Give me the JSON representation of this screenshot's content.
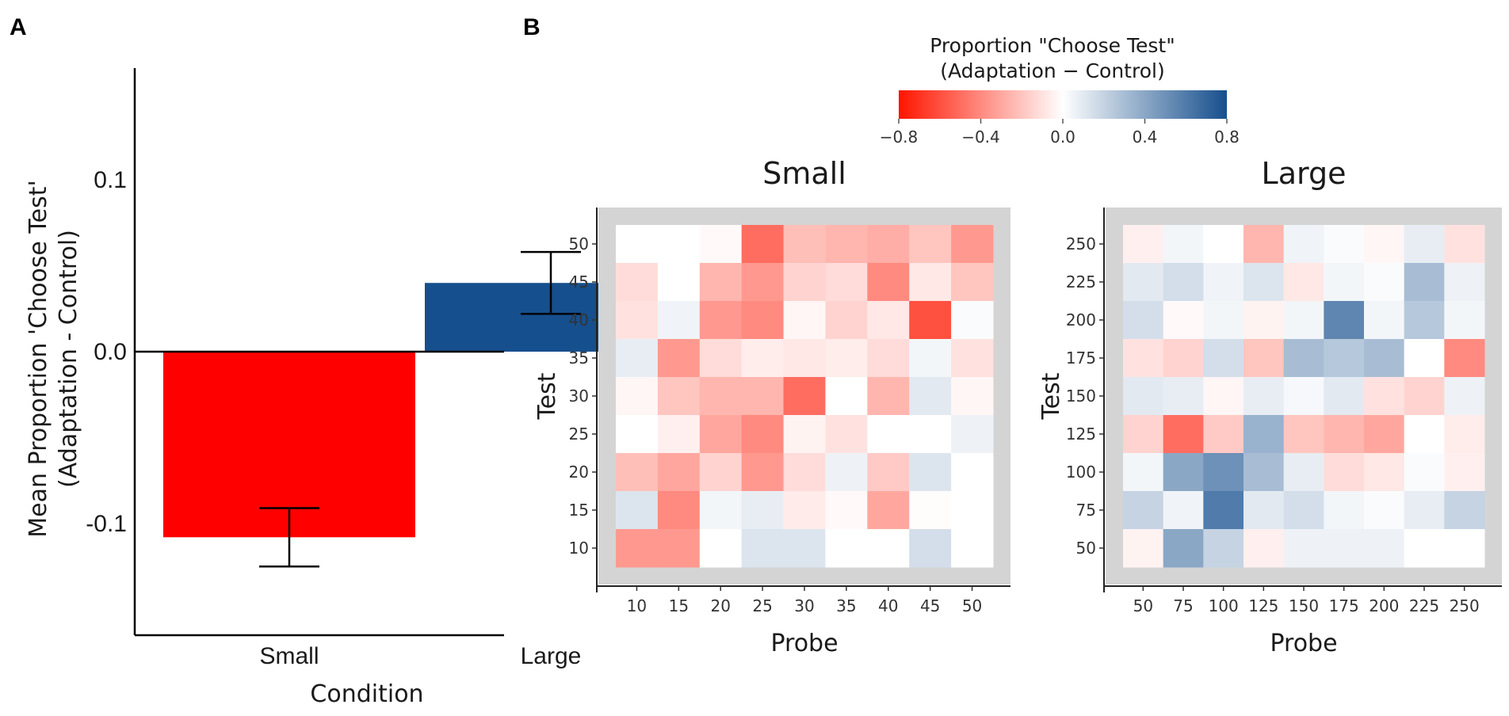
{
  "chart_data": [
    {
      "panel": "A",
      "type": "bar",
      "categories": [
        "Small",
        "Large"
      ],
      "values": [
        -0.108,
        0.04
      ],
      "error_bars": [
        {
          "category": "Small",
          "low": -0.125,
          "high": -0.091
        },
        {
          "category": "Large",
          "low": 0.022,
          "high": 0.058
        }
      ],
      "colors": [
        "#ff0000",
        "#164f8d"
      ],
      "xlabel": "Condition",
      "ylabel_line1": "Mean Proportion 'Choose Test'",
      "ylabel_line2": "(Adaptation - Control)",
      "ylim": [
        -0.165,
        0.165
      ],
      "yticks": [
        -0.1,
        0.0,
        0.1
      ],
      "ytick_labels": [
        "-0.1",
        "0.0",
        "0.1"
      ]
    },
    {
      "panel": "B",
      "type": "heatmap",
      "colorbar": {
        "title_line1": "Proportion \"Choose Test\"",
        "title_line2": "(Adaptation − Control)",
        "range": [
          -0.8,
          0.8
        ],
        "ticks": [
          "−0.8",
          "−0.4",
          "0.0",
          "0.4",
          "0.8"
        ],
        "low_color": "#ff1500",
        "mid_color": "#ffffff",
        "high_color": "#164f8d"
      },
      "panels": [
        {
          "title": "Small",
          "xlabel": "Probe",
          "ylabel": "Test",
          "x_labels": [
            "10",
            "15",
            "20",
            "25",
            "30",
            "35",
            "40",
            "45",
            "50"
          ],
          "y_labels": [
            "10",
            "15",
            "20",
            "25",
            "30",
            "35",
            "40",
            "45",
            "50"
          ],
          "values_by_row_top_to_bottom": [
            [
              0.0,
              0.0,
              -0.02,
              -0.5,
              -0.22,
              -0.25,
              -0.28,
              -0.2,
              -0.35
            ],
            [
              -0.12,
              0.0,
              -0.25,
              -0.35,
              -0.15,
              -0.12,
              -0.4,
              -0.08,
              -0.2
            ],
            [
              -0.1,
              0.05,
              -0.35,
              -0.4,
              -0.03,
              -0.15,
              -0.08,
              -0.6,
              0.02
            ],
            [
              0.08,
              -0.35,
              -0.12,
              -0.06,
              -0.08,
              -0.06,
              -0.12,
              0.04,
              -0.1
            ],
            [
              -0.03,
              -0.2,
              -0.25,
              -0.25,
              -0.5,
              0.0,
              -0.25,
              0.1,
              -0.03
            ],
            [
              0.0,
              -0.05,
              -0.3,
              -0.4,
              -0.04,
              -0.1,
              0.0,
              0.0,
              0.06
            ],
            [
              -0.22,
              -0.3,
              -0.15,
              -0.35,
              -0.12,
              0.06,
              -0.18,
              0.12,
              0.0
            ],
            [
              0.12,
              -0.4,
              0.04,
              0.08,
              -0.07,
              -0.02,
              -0.3,
              -0.01,
              0.0
            ],
            [
              -0.35,
              -0.35,
              0.0,
              0.12,
              0.12,
              0.0,
              0.0,
              0.15,
              0.0
            ]
          ]
        },
        {
          "title": "Large",
          "xlabel": "Probe",
          "ylabel": "Test",
          "x_labels": [
            "50",
            "75",
            "100",
            "125",
            "150",
            "175",
            "200",
            "225",
            "250"
          ],
          "y_labels": [
            "50",
            "75",
            "100",
            "125",
            "150",
            "175",
            "200",
            "225",
            "250"
          ],
          "values_by_row_top_to_bottom": [
            [
              -0.05,
              0.04,
              0.0,
              -0.25,
              0.05,
              0.02,
              -0.03,
              0.08,
              -0.1
            ],
            [
              0.1,
              0.15,
              0.05,
              0.12,
              -0.08,
              0.04,
              0.02,
              0.3,
              0.06
            ],
            [
              0.15,
              -0.02,
              0.04,
              -0.04,
              0.04,
              0.55,
              0.04,
              0.25,
              0.04
            ],
            [
              -0.1,
              -0.15,
              0.15,
              -0.2,
              0.3,
              0.25,
              0.3,
              0.0,
              -0.4
            ],
            [
              0.1,
              0.08,
              -0.03,
              0.08,
              0.03,
              0.1,
              -0.1,
              -0.15,
              0.06
            ],
            [
              -0.15,
              -0.5,
              -0.18,
              0.35,
              -0.2,
              -0.25,
              -0.3,
              0.0,
              -0.06
            ],
            [
              0.04,
              0.4,
              0.5,
              0.3,
              0.08,
              -0.12,
              -0.08,
              0.02,
              -0.05
            ],
            [
              0.2,
              0.05,
              0.6,
              0.1,
              0.15,
              0.04,
              0.02,
              0.08,
              0.2
            ],
            [
              -0.04,
              0.4,
              0.2,
              -0.05,
              0.06,
              0.06,
              0.06,
              0.0,
              0.0
            ]
          ]
        }
      ]
    }
  ],
  "panel_labels": [
    "A",
    "B"
  ]
}
